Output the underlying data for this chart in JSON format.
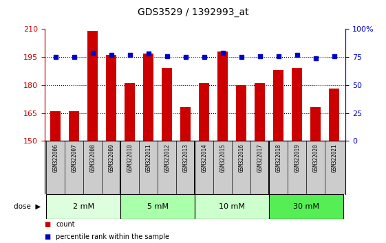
{
  "title": "GDS3529 / 1392993_at",
  "samples": [
    "GSM322006",
    "GSM322007",
    "GSM322008",
    "GSM322009",
    "GSM322010",
    "GSM322011",
    "GSM322012",
    "GSM322013",
    "GSM322014",
    "GSM322015",
    "GSM322016",
    "GSM322017",
    "GSM322018",
    "GSM322019",
    "GSM322020",
    "GSM322021"
  ],
  "counts": [
    166,
    166,
    209,
    196,
    181,
    197,
    189,
    168,
    181,
    198,
    180,
    181,
    188,
    189,
    168,
    178
  ],
  "percentiles": [
    75,
    75,
    79,
    77,
    77,
    78,
    76,
    75,
    75,
    79,
    75,
    76,
    76,
    77,
    74,
    76
  ],
  "ylim_min": 150,
  "ylim_max": 210,
  "yticks": [
    150,
    165,
    180,
    195,
    210
  ],
  "y2lim_min": 0,
  "y2lim_max": 100,
  "y2ticks": [
    0,
    25,
    50,
    75,
    100
  ],
  "bar_color": "#cc0000",
  "dot_color": "#0000cc",
  "bar_width": 0.55,
  "doses": [
    {
      "label": "2 mM",
      "start": 0,
      "end": 3,
      "color": "#ddffdd"
    },
    {
      "label": "5 mM",
      "start": 4,
      "end": 7,
      "color": "#aaffaa"
    },
    {
      "label": "10 mM",
      "start": 8,
      "end": 11,
      "color": "#ccffcc"
    },
    {
      "label": "30 mM",
      "start": 12,
      "end": 15,
      "color": "#55ee55"
    }
  ],
  "dose_label": "dose",
  "legend_count_color": "#cc0000",
  "legend_pct_color": "#0000cc",
  "bg_color": "#ffffff",
  "left_tick_color": "#cc0000",
  "right_tick_color": "#0000cc",
  "xlabel_tick_bg": "#cccccc",
  "group_boundaries": [
    3.5,
    7.5,
    11.5
  ]
}
